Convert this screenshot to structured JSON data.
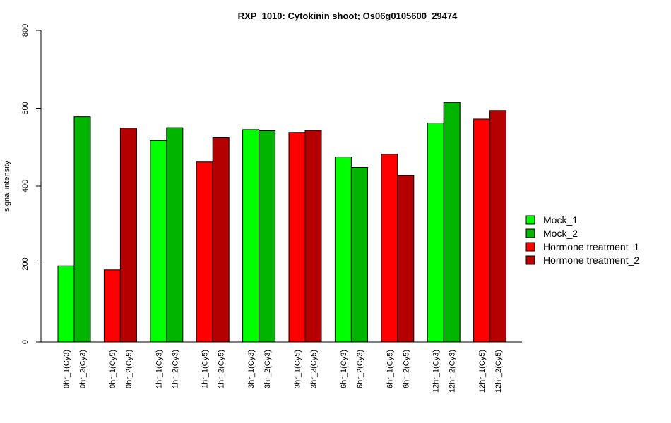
{
  "chart_data": {
    "type": "bar",
    "title": "RXP_1010: Cytokinin shoot; Os06g0105600_29474",
    "xlabel": "",
    "ylabel": "signal intensity",
    "ylim": [
      0,
      800
    ],
    "yticks": [
      0,
      200,
      400,
      600,
      800
    ],
    "grid": false,
    "legend_position": "right",
    "legend": [
      {
        "name": "Mock_1",
        "color": "#00FF00"
      },
      {
        "name": "Mock_2",
        "color": "#00B400"
      },
      {
        "name": "Hormone treatment_1",
        "color": "#FF0000"
      },
      {
        "name": "Hormone treatment_2",
        "color": "#B40000"
      }
    ],
    "groups": [
      {
        "bars": [
          {
            "label": "0hr_1(Cy3)",
            "value": 195,
            "series": 0
          },
          {
            "label": "0hr_2(Cy3)",
            "value": 578,
            "series": 1
          }
        ]
      },
      {
        "bars": [
          {
            "label": "0hr_1(Cy5)",
            "value": 185,
            "series": 2
          },
          {
            "label": "0hr_2(Cy5)",
            "value": 549,
            "series": 3
          }
        ]
      },
      {
        "bars": [
          {
            "label": "1hr_1(Cy3)",
            "value": 517,
            "series": 0
          },
          {
            "label": "1hr_2(Cy3)",
            "value": 550,
            "series": 1
          }
        ]
      },
      {
        "bars": [
          {
            "label": "1hr_1(Cy5)",
            "value": 462,
            "series": 2
          },
          {
            "label": "1hr_2(Cy5)",
            "value": 524,
            "series": 3
          }
        ]
      },
      {
        "bars": [
          {
            "label": "3hr_1(Cy3)",
            "value": 545,
            "series": 0
          },
          {
            "label": "3hr_2(Cy3)",
            "value": 542,
            "series": 1
          }
        ]
      },
      {
        "bars": [
          {
            "label": "3hr_1(Cy5)",
            "value": 538,
            "series": 2
          },
          {
            "label": "3hr_2(Cy5)",
            "value": 543,
            "series": 3
          }
        ]
      },
      {
        "bars": [
          {
            "label": "6hr_1(Cy3)",
            "value": 475,
            "series": 0
          },
          {
            "label": "6hr_2(Cy3)",
            "value": 448,
            "series": 1
          }
        ]
      },
      {
        "bars": [
          {
            "label": "6hr_1(Cy5)",
            "value": 482,
            "series": 2
          },
          {
            "label": "6hr_2(Cy5)",
            "value": 428,
            "series": 3
          }
        ]
      },
      {
        "bars": [
          {
            "label": "12hr_1(Cy3)",
            "value": 562,
            "series": 0
          },
          {
            "label": "12hr_2(Cy3)",
            "value": 615,
            "series": 1
          }
        ]
      },
      {
        "bars": [
          {
            "label": "12hr_1(Cy5)",
            "value": 572,
            "series": 2
          },
          {
            "label": "12hr_2(Cy5)",
            "value": 594,
            "series": 3
          }
        ]
      }
    ]
  }
}
